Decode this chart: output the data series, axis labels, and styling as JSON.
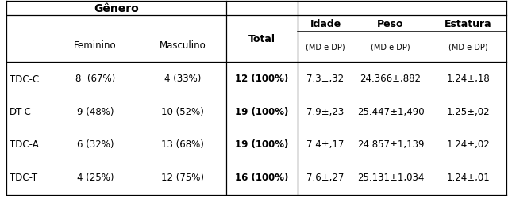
{
  "title": "Gênero",
  "rows": [
    [
      "TDC-C",
      "8  (67%)",
      "4 (33%)",
      "12 (100%)",
      "7.3±,32",
      "24.366±,882",
      "1.24±,18"
    ],
    [
      "DT-C",
      "9 (48%)",
      "10 (52%)",
      "19 (100%)",
      "7.9±,23",
      "25.447±1,490",
      "1.25±,02"
    ],
    [
      "TDC-A",
      "6 (32%)",
      "13 (68%)",
      "19 (100%)",
      "7.4±,17",
      "24.857±1,139",
      "1.24±,02"
    ],
    [
      "TDC-T",
      "4 (25%)",
      "12 (75%)",
      "16 (100%)",
      "7.6±,27",
      "25.131±1,034",
      "1.24±,01"
    ]
  ],
  "background_color": "#ffffff",
  "line_color": "#000000",
  "font_size": 8.5
}
